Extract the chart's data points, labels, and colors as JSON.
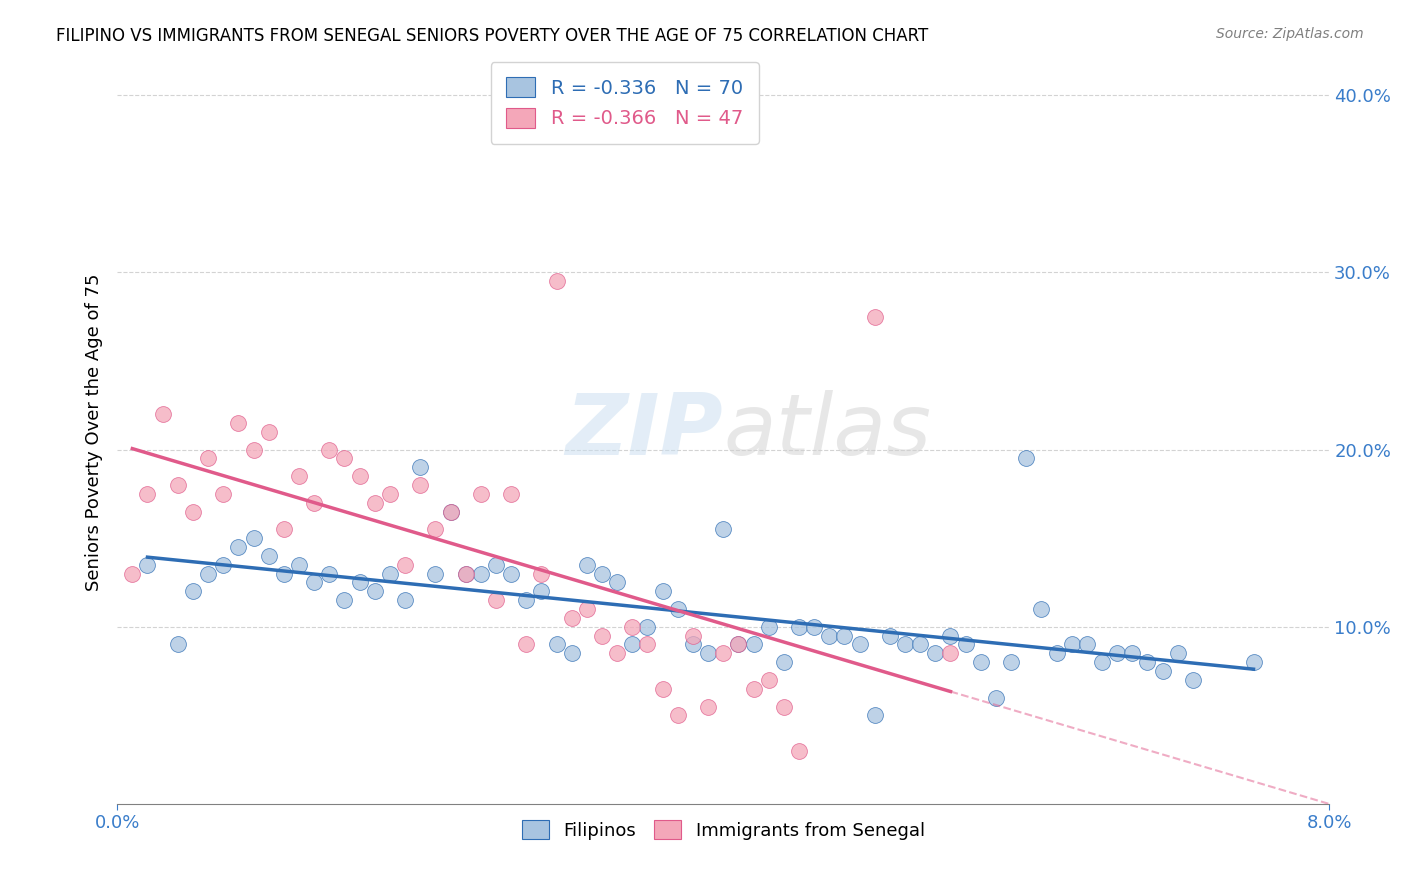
{
  "title": "FILIPINO VS IMMIGRANTS FROM SENEGAL SENIORS POVERTY OVER THE AGE OF 75 CORRELATION CHART",
  "source": "Source: ZipAtlas.com",
  "ylabel": "Seniors Poverty Over the Age of 75",
  "right_yticks": [
    "40.0%",
    "30.0%",
    "20.0%",
    "10.0%"
  ],
  "right_ytick_vals": [
    0.4,
    0.3,
    0.2,
    0.1
  ],
  "xlim": [
    0.0,
    0.08
  ],
  "ylim": [
    0.0,
    0.42
  ],
  "legend1_label": "R = -0.336   N = 70",
  "legend2_label": "R = -0.366   N = 47",
  "color_filipino": "#a8c4e0",
  "color_senegal": "#f4a7b9",
  "color_line_filipino": "#2e6db4",
  "color_line_senegal": "#e05a8a",
  "watermark_zip": "ZIP",
  "watermark_atlas": "atlas",
  "filipino_x": [
    0.002,
    0.004,
    0.005,
    0.006,
    0.007,
    0.008,
    0.009,
    0.01,
    0.011,
    0.012,
    0.013,
    0.014,
    0.015,
    0.016,
    0.017,
    0.018,
    0.019,
    0.02,
    0.021,
    0.022,
    0.023,
    0.024,
    0.025,
    0.026,
    0.027,
    0.028,
    0.029,
    0.03,
    0.031,
    0.032,
    0.033,
    0.034,
    0.035,
    0.036,
    0.037,
    0.038,
    0.039,
    0.04,
    0.041,
    0.042,
    0.043,
    0.044,
    0.045,
    0.046,
    0.047,
    0.048,
    0.049,
    0.05,
    0.051,
    0.052,
    0.053,
    0.054,
    0.055,
    0.056,
    0.057,
    0.058,
    0.059,
    0.06,
    0.061,
    0.062,
    0.063,
    0.064,
    0.065,
    0.066,
    0.067,
    0.068,
    0.069,
    0.07,
    0.071,
    0.075
  ],
  "filipino_y": [
    0.135,
    0.09,
    0.12,
    0.13,
    0.135,
    0.145,
    0.15,
    0.14,
    0.13,
    0.135,
    0.125,
    0.13,
    0.115,
    0.125,
    0.12,
    0.13,
    0.115,
    0.19,
    0.13,
    0.165,
    0.13,
    0.13,
    0.135,
    0.13,
    0.115,
    0.12,
    0.09,
    0.085,
    0.135,
    0.13,
    0.125,
    0.09,
    0.1,
    0.12,
    0.11,
    0.09,
    0.085,
    0.155,
    0.09,
    0.09,
    0.1,
    0.08,
    0.1,
    0.1,
    0.095,
    0.095,
    0.09,
    0.05,
    0.095,
    0.09,
    0.09,
    0.085,
    0.095,
    0.09,
    0.08,
    0.06,
    0.08,
    0.195,
    0.11,
    0.085,
    0.09,
    0.09,
    0.08,
    0.085,
    0.085,
    0.08,
    0.075,
    0.085,
    0.07,
    0.08
  ],
  "senegal_x": [
    0.001,
    0.002,
    0.003,
    0.004,
    0.005,
    0.006,
    0.007,
    0.008,
    0.009,
    0.01,
    0.011,
    0.012,
    0.013,
    0.014,
    0.015,
    0.016,
    0.017,
    0.018,
    0.019,
    0.02,
    0.021,
    0.022,
    0.023,
    0.024,
    0.025,
    0.026,
    0.027,
    0.028,
    0.029,
    0.03,
    0.031,
    0.032,
    0.033,
    0.034,
    0.035,
    0.036,
    0.037,
    0.038,
    0.039,
    0.04,
    0.041,
    0.042,
    0.043,
    0.044,
    0.045,
    0.05,
    0.055
  ],
  "senegal_y": [
    0.13,
    0.175,
    0.22,
    0.18,
    0.165,
    0.195,
    0.175,
    0.215,
    0.2,
    0.21,
    0.155,
    0.185,
    0.17,
    0.2,
    0.195,
    0.185,
    0.17,
    0.175,
    0.135,
    0.18,
    0.155,
    0.165,
    0.13,
    0.175,
    0.115,
    0.175,
    0.09,
    0.13,
    0.295,
    0.105,
    0.11,
    0.095,
    0.085,
    0.1,
    0.09,
    0.065,
    0.05,
    0.095,
    0.055,
    0.085,
    0.09,
    0.065,
    0.07,
    0.055,
    0.03,
    0.275,
    0.085
  ]
}
